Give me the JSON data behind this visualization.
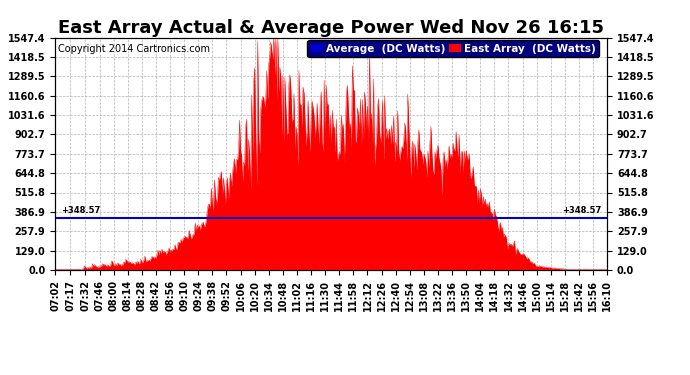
{
  "title": "East Array Actual & Average Power Wed Nov 26 16:15",
  "copyright": "Copyright 2014 Cartronics.com",
  "legend_labels": [
    "Average  (DC Watts)",
    "East Array  (DC Watts)"
  ],
  "legend_colors": [
    "#0000cd",
    "#ff0000"
  ],
  "average_line_value": 348.57,
  "y_ticks": [
    0.0,
    129.0,
    257.9,
    386.9,
    515.8,
    644.8,
    773.7,
    902.7,
    1031.6,
    1160.6,
    1289.5,
    1418.5,
    1547.4
  ],
  "background_color": "#ffffff",
  "plot_bg_color": "#ffffff",
  "grid_color": "#aaaaaa",
  "fill_color": "#ff0000",
  "title_fontsize": 13,
  "tick_fontsize": 7,
  "legend_fontsize": 7.5,
  "copyright_fontsize": 7,
  "label_times": [
    "07:02",
    "07:17",
    "07:32",
    "07:46",
    "08:00",
    "08:14",
    "08:28",
    "08:42",
    "08:56",
    "09:10",
    "09:24",
    "09:38",
    "09:52",
    "10:06",
    "10:20",
    "10:34",
    "10:48",
    "11:02",
    "11:16",
    "11:30",
    "11:44",
    "11:58",
    "12:12",
    "12:26",
    "12:40",
    "12:54",
    "13:08",
    "13:22",
    "13:36",
    "13:50",
    "14:04",
    "14:18",
    "14:32",
    "14:46",
    "15:00",
    "15:14",
    "15:28",
    "15:42",
    "15:56",
    "16:10"
  ]
}
